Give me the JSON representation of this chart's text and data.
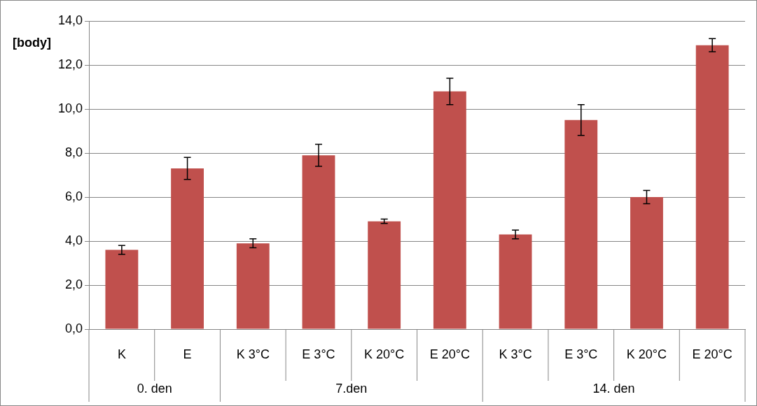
{
  "chart_data": {
    "type": "bar",
    "ylabel": "[body]",
    "categories": [
      "K",
      "E",
      "K 3°C",
      "E 3°C",
      "K 20°C",
      "E 20°C",
      "K 3°C",
      "E 3°C",
      "K 20°C",
      "E 20°C"
    ],
    "values": [
      3.6,
      7.3,
      3.9,
      7.9,
      4.9,
      10.8,
      4.3,
      9.5,
      6.0,
      12.9
    ],
    "errors": [
      0.2,
      0.5,
      0.2,
      0.5,
      0.1,
      0.6,
      0.2,
      0.7,
      0.3,
      0.3
    ],
    "color": "#c0504d",
    "ylim": [
      0,
      14
    ],
    "yticks": [
      {
        "value": 0,
        "label": "0,0"
      },
      {
        "value": 2,
        "label": "2,0"
      },
      {
        "value": 4,
        "label": "4,0"
      },
      {
        "value": 6,
        "label": "6,0"
      },
      {
        "value": 8,
        "label": "8,0"
      },
      {
        "value": 10,
        "label": "10,0"
      },
      {
        "value": 12,
        "label": "12,0"
      },
      {
        "value": 14,
        "label": "14,0"
      }
    ],
    "grid": "y",
    "legend": false,
    "annotations": [
      "0. den",
      "7.den",
      "14. den"
    ]
  }
}
